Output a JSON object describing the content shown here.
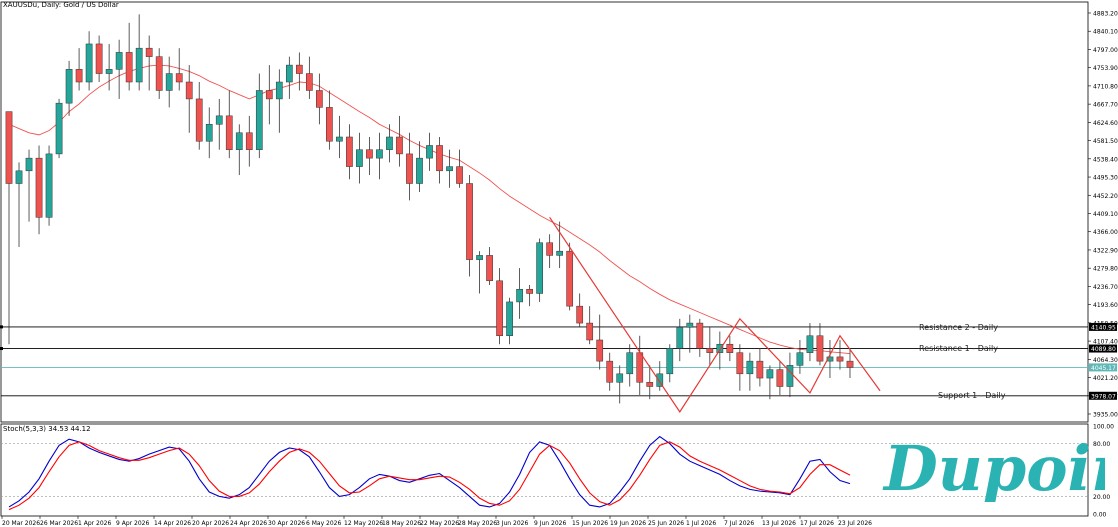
{
  "header": {
    "title": "XAUUSDu, Daily:  Gold / US Dollar"
  },
  "stoch": {
    "title": "Stoch(5,3,3) 34.53 44.12",
    "axis_labels": [
      "100.00",
      "80.00",
      "20.00",
      "0.00"
    ]
  },
  "brand": {
    "logo_text": "Dupoin",
    "color": "#2bb3b3"
  },
  "levels": {
    "resistance2": {
      "label": "Resistance 2 - Daily",
      "price": 4140.95,
      "tag": "4140.95"
    },
    "resistance1": {
      "label": "Resistance 1 - Daily",
      "price": 4089.8,
      "tag": "4089.80"
    },
    "current": {
      "price": 4045.17,
      "tag": "4045.17"
    },
    "support1": {
      "label": "Support 1 - Daily",
      "price": 3978.07,
      "tag": "3978.07"
    }
  },
  "colors": {
    "bull": "#26a69a",
    "bear": "#ef5350",
    "ma": "#ef5350",
    "stoch_main": "#0000cc",
    "stoch_signal": "#ff0000",
    "trend": "#e53935",
    "current_line": "#5fb8b8"
  },
  "chart_data": {
    "type": "candlestick",
    "title": "XAUUSDu, Daily:  Gold / US Dollar",
    "y_ticks": [
      "4883.20",
      "4840.10",
      "4797.00",
      "4753.90",
      "4710.80",
      "4667.70",
      "4624.60",
      "4581.50",
      "4538.40",
      "4495.30",
      "4452.20",
      "4409.10",
      "4366.00",
      "4322.90",
      "4279.80",
      "4236.70",
      "4193.60",
      "4150.50",
      "4107.40",
      "4064.30",
      "4021.20",
      "3978.07",
      "3935.00"
    ],
    "ylim": [
      3935,
      4895
    ],
    "x_ticks": [
      "20 Mar 2026",
      "26 Mar 2026",
      "1 Apr 2026",
      "9 Apr 2026",
      "14 Apr 2026",
      "20 Apr 2026",
      "24 Apr 2026",
      "30 Apr 2026",
      "6 May 2026",
      "12 May 2026",
      "18 May 2026",
      "22 May 2026",
      "28 May 2026",
      "3 Jun 2026",
      "9 Jun 2026",
      "15 Jun 2026",
      "19 Jun 2026",
      "25 Jun 2026",
      "1 Jul 2026",
      "7 Jul 2026",
      "13 Jul 2026",
      "17 Jul 2026",
      "23 Jul 2026"
    ],
    "ohlc": [
      [
        4650,
        4650,
        4100,
        4480
      ],
      [
        4480,
        4530,
        4330,
        4510
      ],
      [
        4510,
        4560,
        4390,
        4540
      ],
      [
        4540,
        4570,
        4360,
        4400
      ],
      [
        4400,
        4570,
        4380,
        4550
      ],
      [
        4550,
        4680,
        4540,
        4670
      ],
      [
        4670,
        4770,
        4640,
        4750
      ],
      [
        4750,
        4800,
        4700,
        4720
      ],
      [
        4720,
        4840,
        4700,
        4810
      ],
      [
        4810,
        4830,
        4720,
        4740
      ],
      [
        4740,
        4810,
        4700,
        4750
      ],
      [
        4750,
        4820,
        4680,
        4790
      ],
      [
        4790,
        4860,
        4700,
        4720
      ],
      [
        4720,
        4880,
        4700,
        4800
      ],
      [
        4800,
        4830,
        4700,
        4780
      ],
      [
        4780,
        4800,
        4680,
        4700
      ],
      [
        4700,
        4780,
        4660,
        4740
      ],
      [
        4740,
        4800,
        4700,
        4720
      ],
      [
        4720,
        4760,
        4600,
        4680
      ],
      [
        4680,
        4720,
        4560,
        4580
      ],
      [
        4580,
        4660,
        4540,
        4620
      ],
      [
        4620,
        4680,
        4560,
        4640
      ],
      [
        4640,
        4700,
        4540,
        4560
      ],
      [
        4560,
        4620,
        4500,
        4600
      ],
      [
        4600,
        4640,
        4520,
        4560
      ],
      [
        4560,
        4740,
        4540,
        4700
      ],
      [
        4700,
        4760,
        4620,
        4680
      ],
      [
        4680,
        4750,
        4600,
        4720
      ],
      [
        4720,
        4780,
        4680,
        4760
      ],
      [
        4760,
        4790,
        4700,
        4740
      ],
      [
        4740,
        4780,
        4680,
        4700
      ],
      [
        4700,
        4740,
        4620,
        4660
      ],
      [
        4660,
        4700,
        4560,
        4580
      ],
      [
        4580,
        4640,
        4540,
        4590
      ],
      [
        4590,
        4620,
        4490,
        4520
      ],
      [
        4520,
        4600,
        4480,
        4560
      ],
      [
        4560,
        4590,
        4500,
        4540
      ],
      [
        4540,
        4600,
        4490,
        4560
      ],
      [
        4560,
        4620,
        4530,
        4590
      ],
      [
        4590,
        4640,
        4520,
        4550
      ],
      [
        4550,
        4600,
        4440,
        4480
      ],
      [
        4480,
        4580,
        4460,
        4540
      ],
      [
        4540,
        4600,
        4510,
        4570
      ],
      [
        4570,
        4590,
        4480,
        4510
      ],
      [
        4510,
        4560,
        4470,
        4520
      ],
      [
        4520,
        4560,
        4470,
        4480
      ],
      [
        4480,
        4500,
        4260,
        4300
      ],
      [
        4300,
        4320,
        4220,
        4310
      ],
      [
        4310,
        4330,
        4240,
        4250
      ],
      [
        4250,
        4280,
        4100,
        4120
      ],
      [
        4120,
        4210,
        4100,
        4200
      ],
      [
        4200,
        4280,
        4160,
        4230
      ],
      [
        4230,
        4240,
        4190,
        4220
      ],
      [
        4220,
        4350,
        4200,
        4340
      ],
      [
        4340,
        4360,
        4280,
        4310
      ],
      [
        4310,
        4390,
        4280,
        4320
      ],
      [
        4320,
        4340,
        4180,
        4190
      ],
      [
        4190,
        4220,
        4140,
        4150
      ],
      [
        4150,
        4190,
        4100,
        4110
      ],
      [
        4110,
        4170,
        4040,
        4060
      ],
      [
        4060,
        4080,
        3990,
        4010
      ],
      [
        4010,
        4050,
        3960,
        4030
      ],
      [
        4030,
        4100,
        4000,
        4080
      ],
      [
        4080,
        4120,
        3980,
        4010
      ],
      [
        4010,
        4050,
        3970,
        4000
      ],
      [
        4000,
        4060,
        3990,
        4030
      ],
      [
        4030,
        4100,
        4010,
        4090
      ],
      [
        4090,
        4160,
        4060,
        4140
      ],
      [
        4140,
        4170,
        4080,
        4150
      ],
      [
        4150,
        4160,
        4070,
        4090
      ],
      [
        4090,
        4140,
        4050,
        4080
      ],
      [
        4080,
        4130,
        4040,
        4100
      ],
      [
        4100,
        4120,
        4060,
        4080
      ],
      [
        4080,
        4100,
        3990,
        4030
      ],
      [
        4030,
        4080,
        3990,
        4060
      ],
      [
        4060,
        4090,
        4000,
        4020
      ],
      [
        4020,
        4050,
        3970,
        4040
      ],
      [
        4040,
        4060,
        3980,
        4000
      ],
      [
        4000,
        4080,
        3975,
        4050
      ],
      [
        4050,
        4110,
        4030,
        4080
      ],
      [
        4080,
        4150,
        4060,
        4120
      ],
      [
        4120,
        4150,
        4050,
        4060
      ],
      [
        4060,
        4110,
        4020,
        4070
      ],
      [
        4070,
        4110,
        4040,
        4060
      ],
      [
        4060,
        4090,
        4020,
        4045
      ]
    ],
    "ma": [
      4620,
      4610,
      4600,
      4595,
      4605,
      4625,
      4650,
      4668,
      4690,
      4708,
      4722,
      4735,
      4745,
      4752,
      4758,
      4760,
      4758,
      4752,
      4745,
      4735,
      4722,
      4712,
      4700,
      4690,
      4680,
      4690,
      4700,
      4705,
      4712,
      4720,
      4718,
      4710,
      4695,
      4680,
      4665,
      4650,
      4636,
      4620,
      4608,
      4596,
      4582,
      4570,
      4560,
      4550,
      4542,
      4535,
      4520,
      4505,
      4488,
      4468,
      4450,
      4435,
      4420,
      4405,
      4392,
      4380,
      4365,
      4350,
      4335,
      4318,
      4298,
      4280,
      4262,
      4248,
      4232,
      4218,
      4205,
      4195,
      4185,
      4175,
      4165,
      4155,
      4145,
      4135,
      4125,
      4115,
      4105,
      4098,
      4092,
      4088,
      4086,
      4085,
      4082,
      4080,
      4078
    ],
    "series": [
      {
        "name": "Stoch main",
        "values": [
          8,
          15,
          25,
          40,
          60,
          78,
          85,
          82,
          75,
          70,
          66,
          62,
          60,
          63,
          68,
          72,
          76,
          74,
          60,
          40,
          25,
          20,
          18,
          22,
          30,
          45,
          60,
          70,
          75,
          73,
          65,
          48,
          30,
          20,
          22,
          30,
          40,
          45,
          43,
          38,
          36,
          40,
          44,
          46,
          38,
          30,
          20,
          10,
          8,
          12,
          25,
          45,
          70,
          82,
          78,
          60,
          40,
          22,
          10,
          8,
          12,
          25,
          40,
          60,
          78,
          88,
          80,
          68,
          60,
          55,
          50,
          45,
          38,
          32,
          28,
          26,
          25,
          24,
          22,
          40,
          60,
          62,
          48,
          38,
          34.53
        ]
      },
      {
        "name": "Stoch signal",
        "values": [
          5,
          10,
          18,
          30,
          48,
          65,
          78,
          82,
          78,
          72,
          68,
          64,
          61,
          61,
          64,
          68,
          72,
          75,
          68,
          55,
          38,
          26,
          20,
          20,
          24,
          34,
          48,
          60,
          70,
          74,
          70,
          60,
          46,
          32,
          24,
          25,
          32,
          40,
          43,
          41,
          39,
          39,
          41,
          43,
          42,
          36,
          28,
          18,
          12,
          10,
          15,
          28,
          48,
          68,
          78,
          72,
          58,
          40,
          24,
          14,
          10,
          16,
          28,
          44,
          62,
          78,
          82,
          76,
          66,
          60,
          55,
          50,
          44,
          38,
          32,
          28,
          26,
          25,
          23,
          30,
          45,
          56,
          56,
          50,
          44.12
        ]
      }
    ]
  }
}
